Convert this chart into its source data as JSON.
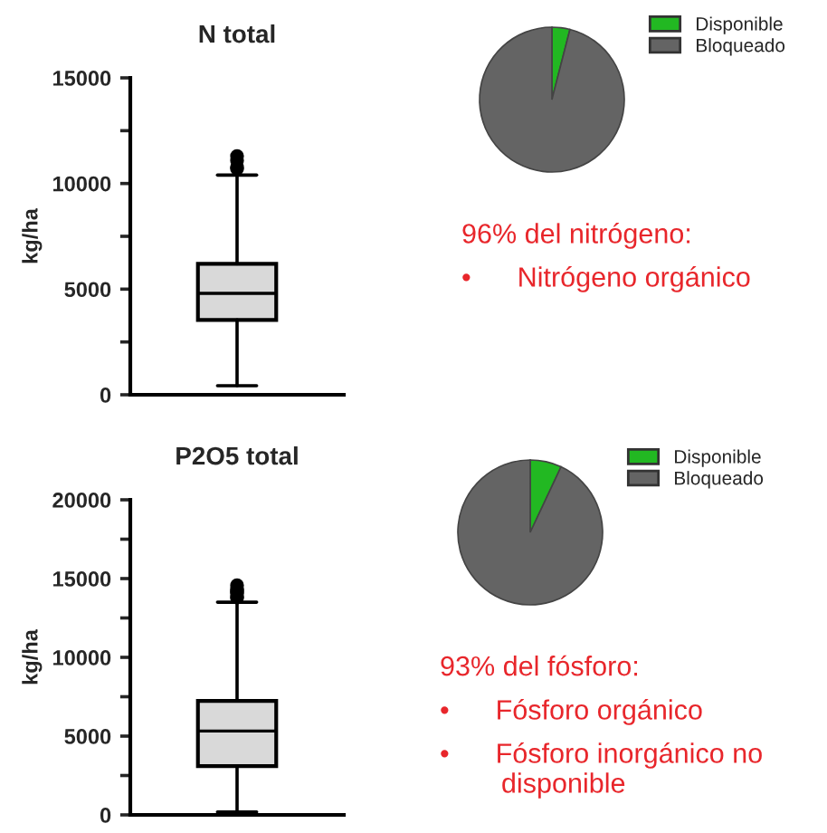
{
  "chart_data": [
    {
      "type": "box",
      "title": "N total",
      "ylabel": "kg/ha",
      "categories": [
        null
      ],
      "tick_labels": "y",
      "grid": false,
      "color": "#d9d9d9",
      "boxes": [
        {
          "low": 430,
          "q1": 3540,
          "median": 4800,
          "q3": 6200,
          "high": 10400,
          "outliers": [
            10700,
            11090,
            11300,
            10770
          ]
        }
      ],
      "ylim": [
        0,
        15000
      ],
      "yticks": [
        0,
        {
          "value": 2500,
          "label": null
        },
        5000,
        {
          "value": 7500,
          "label": null
        },
        10000,
        {
          "value": 12500,
          "label": null
        },
        15000
      ]
    },
    {
      "type": "pie",
      "categories": [
        "Disponible",
        "Bloqueado"
      ],
      "values": [
        4,
        96
      ],
      "colors": [
        "#22b822",
        "#646464"
      ],
      "legend": "right",
      "annotations": [
        "96% del nitrógeno:",
        "•      Nitrógeno orgánico"
      ]
    },
    {
      "type": "box",
      "title": "P2O5 total",
      "ylabel": "kg/ha",
      "categories": [
        null
      ],
      "tick_labels": "y",
      "grid": false,
      "color": "#d9d9d9",
      "boxes": [
        {
          "low": 190,
          "q1": 3100,
          "median": 5320,
          "q3": 7230,
          "high": 13500,
          "outliers": [
            13840,
            14340,
            14070,
            14150,
            14570,
            13800,
            14260
          ]
        }
      ],
      "ylim": [
        0,
        20000
      ],
      "yticks": [
        0,
        {
          "value": 2500,
          "label": null
        },
        5000,
        {
          "value": 7500,
          "label": null
        },
        10000,
        {
          "value": 12500,
          "label": null
        },
        15000,
        {
          "value": 17500,
          "label": null
        },
        20000
      ]
    },
    {
      "type": "pie",
      "categories": [
        "Disponible",
        "Bloqueado"
      ],
      "values": [
        7,
        93
      ],
      "colors": [
        "#22b822",
        "#646464"
      ],
      "legend": "right",
      "annotations": [
        "93% del fósforo:",
        "•      Fósforo orgánico",
        "•      Fósforo inorgánico no\n        disponible"
      ]
    }
  ]
}
